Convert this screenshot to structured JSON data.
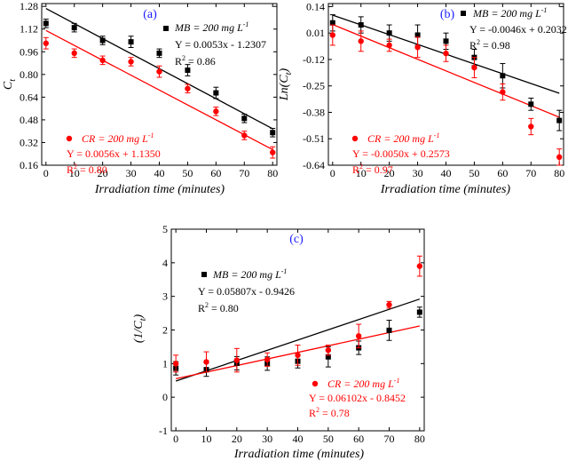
{
  "colors": {
    "mb": "#000000",
    "cr": "#ff0000",
    "tag": "#1a1aff"
  },
  "chart_data": [
    {
      "type": "scatter",
      "tag": "(a)",
      "xlabel": "Irradiation time (minutes)",
      "ylabel": "C_t",
      "ylabel_main": "C",
      "ylabel_sub": "t",
      "ylabel_suffix": "",
      "xlim": [
        -1.5,
        81.5
      ],
      "ylim": [
        0.16,
        1.3
      ],
      "xticks": [
        0,
        10,
        20,
        30,
        40,
        50,
        60,
        70,
        80
      ],
      "yticks": [
        0.16,
        0.32,
        0.48,
        0.64,
        0.8,
        0.96,
        1.12,
        1.28
      ],
      "ytick_labels": [
        "0.16",
        "0.32",
        "0.48",
        "0.64",
        "0.80",
        "0.96",
        "1.12",
        "1.28"
      ],
      "series": [
        {
          "name": "MB = 200 mg L-1",
          "legend_main": "MB = 200 mg L",
          "legend_sup": "-1",
          "equation": "Y = 0.0053x - 1.2307",
          "r2_value": "0.86",
          "color": "#000000",
          "marker": "square",
          "x": [
            0,
            10,
            20,
            30,
            40,
            50,
            60,
            70,
            80
          ],
          "y": [
            1.16,
            1.13,
            1.04,
            1.03,
            0.95,
            0.83,
            0.67,
            0.49,
            0.39
          ],
          "err": [
            0.03,
            0.03,
            0.03,
            0.04,
            0.03,
            0.04,
            0.04,
            0.03,
            0.03
          ],
          "fit": {
            "slope": -0.0106,
            "intercept": 1.265
          }
        },
        {
          "name": "CR = 200 mg L-1",
          "legend_main": "CR = 200 mg L",
          "legend_sup": "-1",
          "equation": "Y = 0.0056x + 1.1350",
          "r2_value": "0.80",
          "color": "#ff0000",
          "marker": "circle",
          "x": [
            0,
            10,
            20,
            30,
            40,
            50,
            60,
            70,
            80
          ],
          "y": [
            1.02,
            0.95,
            0.9,
            0.89,
            0.82,
            0.7,
            0.54,
            0.37,
            0.25
          ],
          "err": [
            0.04,
            0.03,
            0.03,
            0.03,
            0.04,
            0.03,
            0.03,
            0.03,
            0.04
          ],
          "fit": {
            "slope": -0.0105,
            "intercept": 1.11
          }
        }
      ]
    },
    {
      "type": "scatter",
      "tag": "(b)",
      "xlabel": "Irradiation time (minutes)",
      "ylabel": "Ln(C_t)",
      "ylabel_main": "Ln(C",
      "ylabel_sub": "t",
      "ylabel_suffix": ")",
      "xlim": [
        -1.5,
        81.5
      ],
      "ylim": [
        -0.64,
        0.155
      ],
      "xticks": [
        0,
        10,
        20,
        30,
        40,
        50,
        60,
        70,
        80
      ],
      "yticks": [
        0.14,
        0.01,
        -0.12,
        -0.25,
        -0.38,
        -0.51,
        -0.64
      ],
      "ytick_labels": [
        "0.14",
        "0.01",
        "-0.12",
        "-0.25",
        "-0.38",
        "-0.51",
        "-0.64"
      ],
      "series": [
        {
          "name": "MB = 200 mg L-1",
          "legend_main": "MB = 200 mg L",
          "legend_sup": "-1",
          "equation": "Y = -0.0046x + 0.2032",
          "r2_value": "0.98",
          "color": "#000000",
          "marker": "square",
          "x": [
            0,
            10,
            20,
            30,
            40,
            50,
            60,
            70,
            80
          ],
          "y": [
            0.06,
            0.05,
            0.01,
            0.0,
            -0.03,
            -0.11,
            -0.2,
            -0.34,
            -0.42
          ],
          "err": [
            0.04,
            0.04,
            0.04,
            0.05,
            0.04,
            0.04,
            0.06,
            0.03,
            0.05
          ],
          "fit": {
            "slope": -0.0048,
            "intercept": 0.098
          }
        },
        {
          "name": "CR = 200 mg L-1",
          "legend_main": "CR = 200 mg L",
          "legend_sup": "-1",
          "equation": "Y = -0.0050x + 0.2573",
          "r2_value": "0.97",
          "color": "#ff0000",
          "marker": "circle",
          "x": [
            0,
            10,
            20,
            30,
            40,
            50,
            60,
            70,
            80
          ],
          "y": [
            0.0,
            -0.03,
            -0.05,
            -0.06,
            -0.09,
            -0.16,
            -0.28,
            -0.45,
            -0.6
          ],
          "err": [
            0.05,
            0.05,
            0.03,
            0.05,
            0.04,
            0.05,
            0.04,
            0.04,
            0.04
          ],
          "fit": {
            "slope": -0.0057,
            "intercept": 0.052
          }
        }
      ]
    },
    {
      "type": "scatter",
      "tag": "(c)",
      "xlabel": "Irradiation time (minutes)",
      "ylabel": "(1/C_t)",
      "ylabel_main": "(1/C",
      "ylabel_sub": "t",
      "ylabel_suffix": ")",
      "xlim": [
        -1.5,
        81.5
      ],
      "ylim": [
        -1,
        5
      ],
      "xticks": [
        0,
        10,
        20,
        30,
        40,
        50,
        60,
        70,
        80
      ],
      "yticks": [
        -1,
        0,
        1,
        2,
        3,
        4,
        5
      ],
      "ytick_labels": [
        "-1",
        "0",
        "1",
        "2",
        "3",
        "4",
        "5"
      ],
      "series": [
        {
          "name": "MB = 200 mg L-1",
          "legend_main": "MB = 200 mg L",
          "legend_sup": "-1",
          "equation": "Y = 0.05807x - 0.9426",
          "r2_value": "0.80",
          "color": "#000000",
          "marker": "square",
          "x": [
            0,
            10,
            20,
            30,
            40,
            50,
            60,
            70,
            80
          ],
          "y": [
            0.86,
            0.82,
            1.01,
            1.0,
            1.07,
            1.2,
            1.47,
            1.99,
            2.53
          ],
          "err": [
            0.2,
            0.2,
            0.2,
            0.2,
            0.2,
            0.3,
            0.2,
            0.3,
            0.15
          ],
          "fit": {
            "slope": 0.0305,
            "intercept": 0.48
          }
        },
        {
          "name": "CR = 200 mg L-1",
          "legend_main": "CR = 200 mg L",
          "legend_sup": "-1",
          "equation": "Y = 0.06102x - 0.8452",
          "r2_value": "0.78",
          "color": "#ff0000",
          "marker": "circle",
          "x": [
            0,
            10,
            20,
            30,
            40,
            50,
            60,
            70,
            80
          ],
          "y": [
            1.0,
            1.05,
            1.1,
            1.12,
            1.25,
            1.4,
            1.82,
            2.75,
            3.9
          ],
          "err": [
            0.25,
            0.3,
            0.35,
            0.2,
            0.3,
            0.15,
            0.35,
            0.1,
            0.3
          ],
          "fit": {
            "slope": 0.0196,
            "intercept": 0.55
          }
        }
      ]
    }
  ]
}
